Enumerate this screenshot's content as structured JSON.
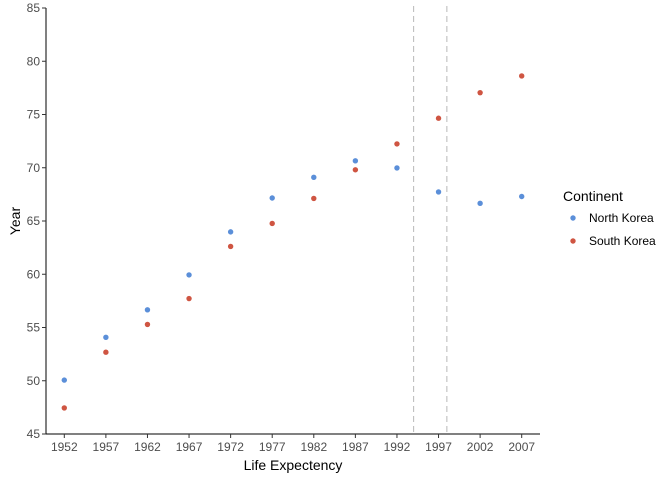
{
  "chart_data": {
    "type": "scatter",
    "xlabel": "Life Expectency",
    "ylabel": "Year",
    "x": [
      1952,
      1957,
      1962,
      1967,
      1972,
      1977,
      1982,
      1987,
      1992,
      1997,
      2002,
      2007
    ],
    "x_ticks": [
      "1952",
      "1957",
      "1962",
      "1967",
      "1972",
      "1977",
      "1982",
      "1987",
      "1992",
      "1997",
      "2002",
      "2007"
    ],
    "ylim": [
      45,
      85
    ],
    "y_ticks": [
      "45",
      "50",
      "55",
      "60",
      "65",
      "70",
      "75",
      "80",
      "85"
    ],
    "vlines": [
      1994,
      1998
    ],
    "legend": {
      "title": "Continent",
      "position": "right"
    },
    "series": [
      {
        "name": "North Korea",
        "color": "#5b8fd9",
        "values": [
          50.06,
          54.08,
          56.66,
          59.94,
          63.98,
          67.16,
          69.1,
          70.65,
          69.98,
          67.73,
          66.66,
          67.3
        ]
      },
      {
        "name": "South Korea",
        "color": "#cf5542",
        "values": [
          47.45,
          52.68,
          55.29,
          57.72,
          62.61,
          64.77,
          67.12,
          69.81,
          72.24,
          74.65,
          77.05,
          78.62
        ]
      }
    ]
  }
}
